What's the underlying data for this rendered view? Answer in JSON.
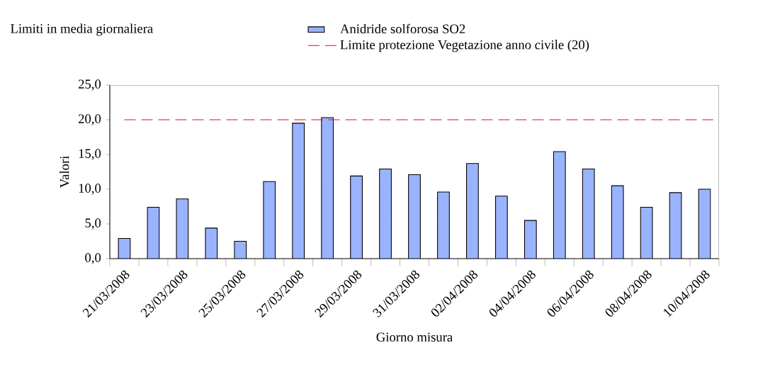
{
  "chart_data": {
    "type": "bar",
    "title": "Limiti in media giornaliera",
    "xlabel": "Giorno misura",
    "ylabel": "Valori",
    "categories": [
      "21/03/2008",
      null,
      "23/03/2008",
      null,
      "25/03/2008",
      null,
      "27/03/2008",
      null,
      "29/03/2008",
      null,
      "31/03/2008",
      null,
      "02/04/2008",
      null,
      "04/04/2008",
      null,
      "06/04/2008",
      null,
      "08/04/2008",
      null,
      "10/04/2008"
    ],
    "series": [
      {
        "name": "Anidride solforosa SO2",
        "color": "#99b3ff",
        "values": [
          2.9,
          7.4,
          8.6,
          4.4,
          2.5,
          11.1,
          19.5,
          20.3,
          11.9,
          12.9,
          12.1,
          9.6,
          13.7,
          9.0,
          5.5,
          15.4,
          12.9,
          10.5,
          7.4,
          9.5,
          10.0
        ]
      }
    ],
    "ref_lines": [
      {
        "axis": "y",
        "value": 20,
        "label": "Limite protezione Vegetazione anno civile (20)",
        "color": "#ff0000",
        "line_style": "dashed"
      }
    ],
    "ylim": [
      0,
      25
    ],
    "yticks": [
      {
        "value": 0,
        "label": "0,0"
      },
      {
        "value": 5,
        "label": "5,0"
      },
      {
        "value": 10,
        "label": "10,0"
      },
      {
        "value": 15,
        "label": "15,0"
      },
      {
        "value": 20,
        "label": "20,0"
      },
      {
        "value": 25,
        "label": "25,0"
      }
    ],
    "grid": false,
    "legend": "top"
  }
}
